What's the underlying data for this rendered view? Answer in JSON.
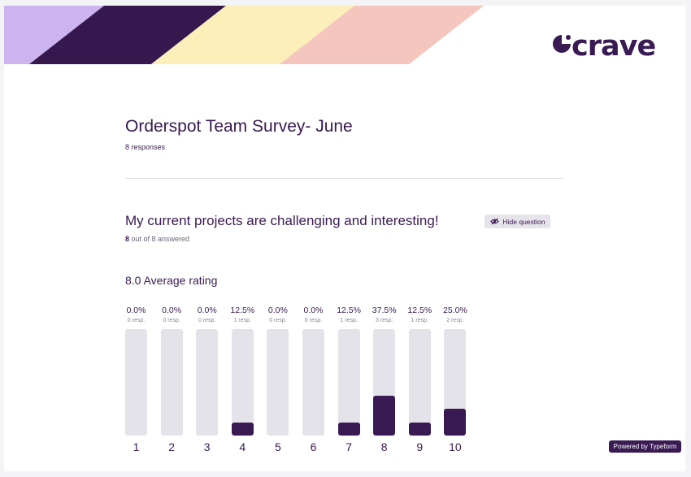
{
  "brand": {
    "logo_text": "crave",
    "banner_colors": [
      "#cbb4ef",
      "#36184f",
      "#fcefb9",
      "#f5c6bd"
    ],
    "primary_color": "#3a1a52"
  },
  "survey": {
    "title": "Orderspot Team Survey- June",
    "responses": "8 responses"
  },
  "question": {
    "text": "My current projects are challenging and interesting!",
    "answered_count": "8",
    "answered_suffix": " out of 8 answered",
    "hide_label": "Hide question",
    "hide_icon": "eye-slash-icon",
    "average": "8.0 Average rating"
  },
  "chart_data": {
    "type": "bar",
    "title": "8.0 Average rating",
    "categories": [
      "1",
      "2",
      "3",
      "4",
      "5",
      "6",
      "7",
      "8",
      "9",
      "10"
    ],
    "values": [
      0.0,
      0.0,
      0.0,
      12.5,
      0.0,
      0.0,
      12.5,
      37.5,
      12.5,
      25.0
    ],
    "percent_labels": [
      "0.0%",
      "0.0%",
      "0.0%",
      "12.5%",
      "0.0%",
      "0.0%",
      "12.5%",
      "37.5%",
      "12.5%",
      "25.0%"
    ],
    "resp_labels": [
      "0 resp.",
      "0 resp.",
      "0 resp.",
      "1 resp.",
      "0 resp.",
      "0 resp.",
      "1 resp.",
      "3 resp.",
      "1 resp.",
      "2 resp."
    ],
    "ylim": [
      0,
      100
    ],
    "xlabel": "",
    "ylabel": ""
  },
  "footer": {
    "powered": "Powered by Typeform"
  }
}
